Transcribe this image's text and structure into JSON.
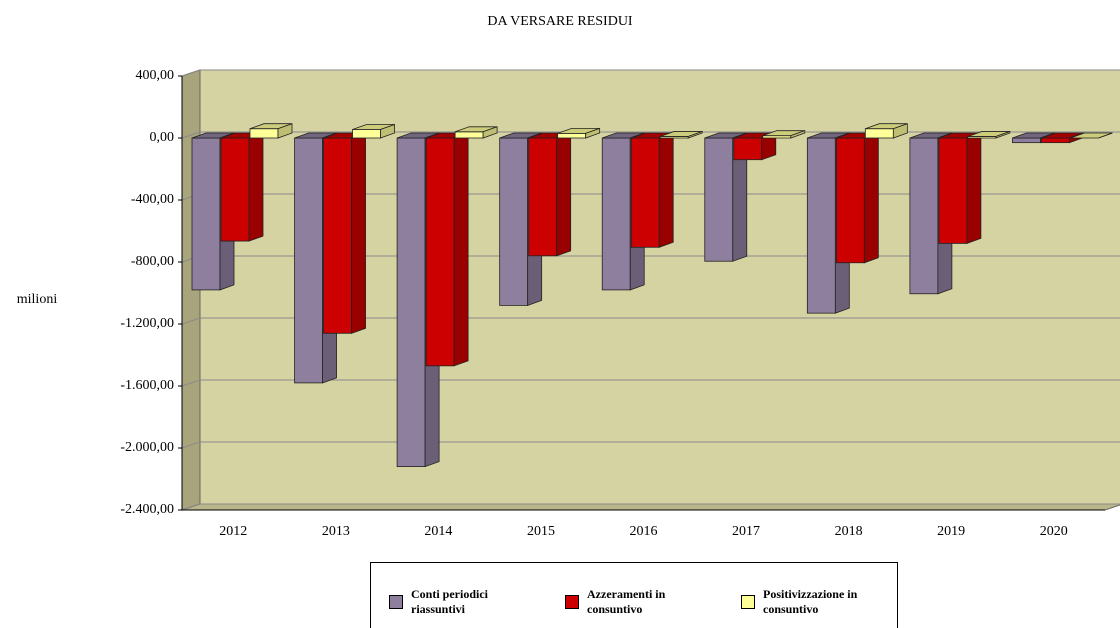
{
  "chart_data": {
    "type": "bar3d",
    "title": "DA VERSARE RESIDUI",
    "y_label": "milioni",
    "categories": [
      "2012",
      "2013",
      "2014",
      "2015",
      "2016",
      "2017",
      "2018",
      "2019",
      "2020"
    ],
    "series": [
      {
        "name": "Conti periodici riassuntivi",
        "color": "#8e7f9e",
        "values": [
          -980,
          -1580,
          -2120,
          -1080,
          -980,
          -795,
          -1130,
          -1005,
          -30
        ]
      },
      {
        "name": "Azzeramenti in consuntivo",
        "color": "#cc0000",
        "values": [
          -665,
          -1260,
          -1470,
          -760,
          -705,
          -140,
          -805,
          -680,
          -30
        ]
      },
      {
        "name": "Positivizzazione in consuntivo",
        "color": "#ffff99",
        "values": [
          60,
          55,
          40,
          30,
          10,
          15,
          60,
          10,
          0
        ]
      }
    ],
    "ylim": [
      -2400,
      400
    ],
    "yticks": [
      {
        "value": 400,
        "label": "400,00"
      },
      {
        "value": 0,
        "label": "0,00"
      },
      {
        "value": -400,
        "label": "-400,00"
      },
      {
        "value": -800,
        "label": "-800,00"
      },
      {
        "value": -1200,
        "label": "-1.200,00"
      },
      {
        "value": -1600,
        "label": "-1.600,00"
      },
      {
        "value": -2000,
        "label": "-2.000,00"
      },
      {
        "value": -2400,
        "label": "-2.400,00"
      }
    ],
    "grid": true,
    "legend": "bottom"
  }
}
